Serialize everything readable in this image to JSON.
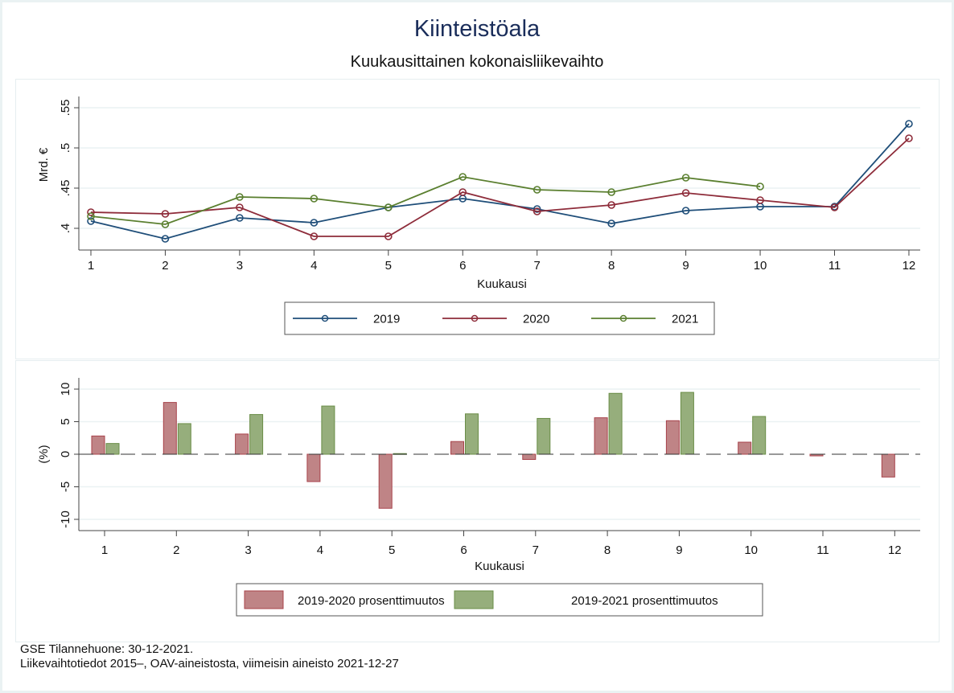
{
  "title": "Kiinteistöala",
  "subtitle": "Kuukausittainen kokonaisliikevaihto",
  "footer": {
    "line1": "GSE Tilannehuone: 30-12-2021.",
    "line2": "Liikevaihtotiedot 2015–, OAV-aineistosta, viimeisin aineisto 2021-12-27"
  },
  "chart_data": [
    {
      "type": "line",
      "title": "",
      "xlabel": "Kuukausi",
      "ylabel": "Mrd. €",
      "x": [
        1,
        2,
        3,
        4,
        5,
        6,
        7,
        8,
        9,
        10,
        11,
        12
      ],
      "x_tick_labels": [
        "1",
        "2",
        "3",
        "4",
        "5",
        "6",
        "7",
        "8",
        "9",
        "10",
        "11",
        "12"
      ],
      "y_ticks": [
        0.4,
        0.45,
        0.5,
        0.55
      ],
      "y_tick_labels": [
        ".4",
        ".45",
        ".5",
        ".55"
      ],
      "ylim": [
        0.385,
        0.56
      ],
      "grid": true,
      "legend_position": "bottom",
      "series": [
        {
          "name": "2019",
          "color": "#1f4e79",
          "marker": "hollow-circle",
          "values": [
            0.409,
            0.387,
            0.413,
            0.407,
            0.426,
            0.437,
            0.424,
            0.406,
            0.422,
            0.427,
            0.427,
            0.53
          ]
        },
        {
          "name": "2020",
          "color": "#8e2c3a",
          "marker": "hollow-circle",
          "values": [
            0.42,
            0.418,
            0.426,
            0.39,
            0.39,
            0.445,
            0.421,
            0.429,
            0.444,
            0.435,
            0.426,
            0.512
          ]
        },
        {
          "name": "2021",
          "color": "#5a7f2f",
          "marker": "hollow-circle",
          "values": [
            0.415,
            0.405,
            0.439,
            0.437,
            0.426,
            0.464,
            0.448,
            0.445,
            0.463,
            0.452,
            null,
            null
          ]
        }
      ]
    },
    {
      "type": "bar",
      "title": "",
      "xlabel": "Kuukausi",
      "ylabel": "(%)",
      "categories": [
        "1",
        "2",
        "3",
        "4",
        "5",
        "6",
        "7",
        "8",
        "9",
        "10",
        "11",
        "12"
      ],
      "y_ticks": [
        -10,
        -5,
        0,
        5,
        10
      ],
      "y_tick_labels": [
        "-10",
        "-5",
        "0",
        "5",
        "10"
      ],
      "ylim": [
        -11.7,
        11.5
      ],
      "grid": true,
      "zero_line": "dashed",
      "legend_position": "bottom",
      "series": [
        {
          "name": "2019-2020 prosenttimuutos",
          "color": "#bf8486",
          "edge": "#a8434b",
          "values": [
            2.8,
            7.95,
            3.1,
            -4.2,
            -8.3,
            1.95,
            -0.8,
            5.6,
            5.15,
            1.85,
            -0.25,
            -3.5
          ]
        },
        {
          "name": "2019-2021 prosenttimuutos",
          "color": "#96ae7c",
          "edge": "#6a8d47",
          "values": [
            1.65,
            4.7,
            6.1,
            7.4,
            0.1,
            6.2,
            5.5,
            9.35,
            9.5,
            5.8,
            null,
            null
          ]
        }
      ]
    }
  ]
}
